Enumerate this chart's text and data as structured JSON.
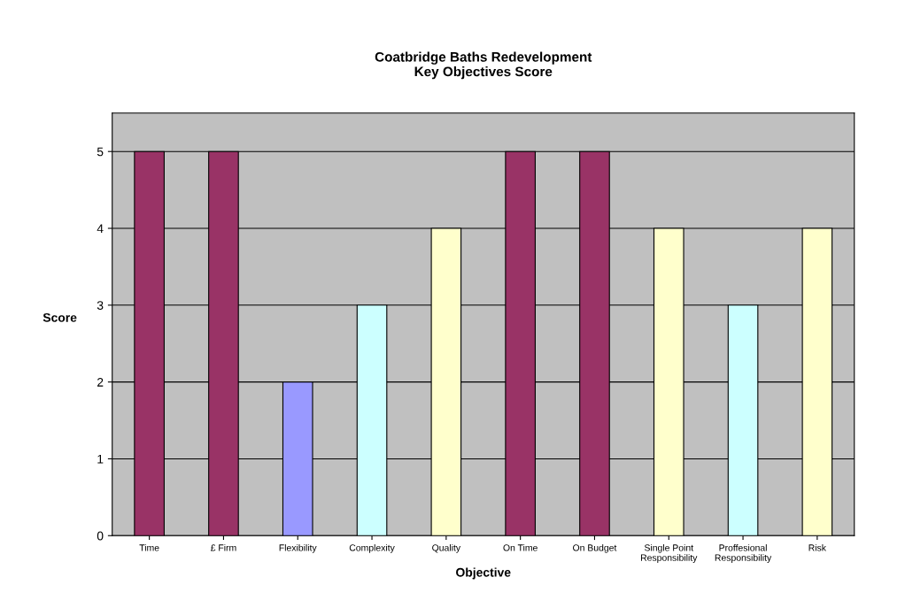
{
  "chart_data": {
    "type": "bar",
    "title": "Coatbridge Baths Redevelopment\nKey Objectives Score",
    "xlabel": "Objective",
    "ylabel": "Score",
    "categories": [
      "Time",
      "£ Firm",
      "Flexibility",
      "Complexity",
      "Quality",
      "On Time",
      "On Budget",
      "Single Point\nResponsibility",
      "Proffesional\nResponsibility",
      "Risk"
    ],
    "values": [
      5,
      5,
      2,
      3,
      4,
      5,
      5,
      4,
      3,
      4
    ],
    "colors": [
      "#993366",
      "#993366",
      "#9999ff",
      "#ccffff",
      "#ffffcc",
      "#993366",
      "#993366",
      "#ffffcc",
      "#ccffff",
      "#ffffcc"
    ],
    "ylim": [
      0,
      5.5
    ],
    "yticks": [
      0,
      1,
      2,
      3,
      4,
      5
    ],
    "grid": "y"
  }
}
